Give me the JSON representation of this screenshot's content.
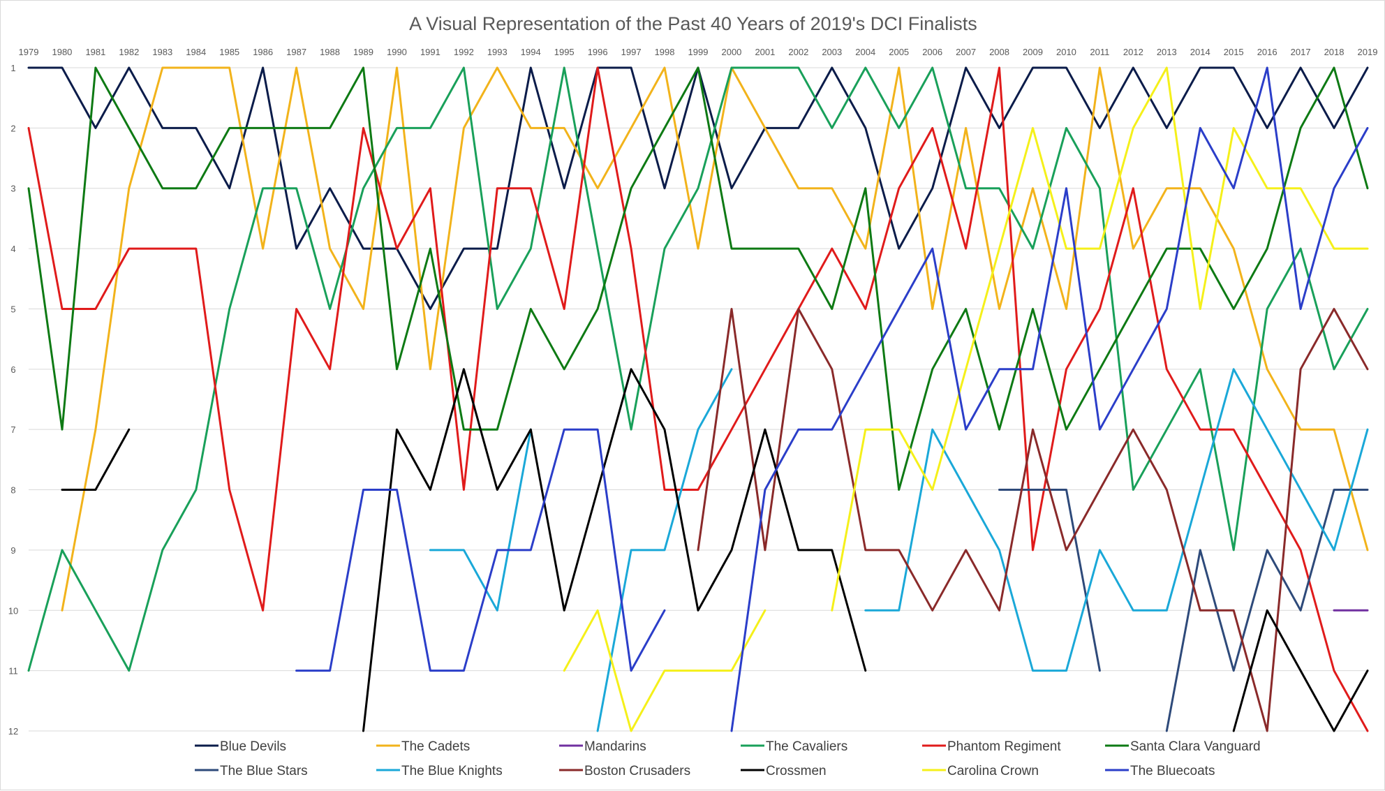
{
  "chart_data": {
    "type": "line",
    "title": "A Visual Representation of the Past 40 Years of 2019's DCI Finalists",
    "xlabel": "",
    "ylabel": "",
    "ylim": [
      12,
      1
    ],
    "y_ticks": [
      1,
      2,
      3,
      4,
      5,
      6,
      7,
      8,
      9,
      10,
      11,
      12
    ],
    "grid": true,
    "legend_position": "bottom",
    "x": [
      1979,
      1980,
      1981,
      1982,
      1983,
      1984,
      1985,
      1986,
      1987,
      1988,
      1989,
      1990,
      1991,
      1992,
      1993,
      1994,
      1995,
      1996,
      1997,
      1998,
      1999,
      2000,
      2001,
      2002,
      2003,
      2004,
      2005,
      2006,
      2007,
      2008,
      2009,
      2010,
      2011,
      2012,
      2013,
      2014,
      2015,
      2016,
      2017,
      2018,
      2019
    ],
    "series": [
      {
        "name": "Blue Devils",
        "color": "#0b1c4a",
        "values": [
          1,
          1,
          2,
          1,
          2,
          2,
          3,
          1,
          4,
          3,
          4,
          4,
          5,
          4,
          4,
          1,
          3,
          1,
          1,
          3,
          1,
          3,
          2,
          2,
          1,
          2,
          4,
          3,
          1,
          2,
          1,
          1,
          2,
          1,
          2,
          1,
          1,
          2,
          1,
          2,
          1
        ]
      },
      {
        "name": "The Cadets",
        "color": "#f2b31b",
        "values": [
          null,
          10,
          7,
          3,
          1,
          1,
          1,
          4,
          1,
          4,
          5,
          1,
          6,
          2,
          1,
          2,
          2,
          3,
          2,
          1,
          4,
          1,
          2,
          3,
          3,
          4,
          1,
          5,
          2,
          5,
          3,
          5,
          1,
          4,
          3,
          3,
          4,
          6,
          7,
          7,
          9
        ]
      },
      {
        "name": "Mandarins",
        "color": "#7030a0",
        "values": [
          null,
          null,
          null,
          null,
          null,
          null,
          null,
          null,
          null,
          null,
          null,
          null,
          null,
          null,
          null,
          null,
          null,
          null,
          null,
          null,
          null,
          null,
          null,
          null,
          null,
          null,
          null,
          null,
          null,
          null,
          null,
          null,
          null,
          null,
          null,
          null,
          null,
          null,
          null,
          10,
          10
        ]
      },
      {
        "name": "The Cavaliers",
        "color": "#19a05a",
        "values": [
          11,
          9,
          10,
          11,
          9,
          8,
          5,
          3,
          3,
          5,
          3,
          2,
          2,
          1,
          5,
          4,
          1,
          4,
          7,
          4,
          3,
          1,
          1,
          1,
          2,
          1,
          2,
          1,
          3,
          3,
          4,
          2,
          3,
          8,
          7,
          6,
          9,
          5,
          4,
          6,
          5
        ]
      },
      {
        "name": "Phantom Regiment",
        "color": "#e01b1b",
        "values": [
          2,
          5,
          5,
          4,
          4,
          4,
          8,
          10,
          5,
          6,
          2,
          4,
          3,
          8,
          3,
          3,
          5,
          1,
          4,
          8,
          8,
          7,
          6,
          5,
          4,
          5,
          3,
          2,
          4,
          1,
          9,
          6,
          5,
          3,
          6,
          7,
          7,
          8,
          9,
          11,
          12
        ]
      },
      {
        "name": "Santa Clara Vanguard",
        "color": "#0e7a14",
        "values": [
          3,
          7,
          1,
          2,
          3,
          3,
          2,
          2,
          2,
          2,
          1,
          6,
          4,
          7,
          7,
          5,
          6,
          5,
          3,
          2,
          1,
          4,
          4,
          4,
          5,
          3,
          8,
          6,
          5,
          7,
          5,
          7,
          6,
          5,
          4,
          4,
          5,
          4,
          2,
          1,
          3
        ]
      },
      {
        "name": "The Blue Stars",
        "color": "#2e4a7a",
        "values": [
          null,
          null,
          null,
          null,
          null,
          null,
          null,
          null,
          null,
          null,
          null,
          null,
          null,
          null,
          null,
          null,
          null,
          null,
          null,
          null,
          null,
          null,
          null,
          null,
          null,
          null,
          null,
          null,
          null,
          8,
          8,
          8,
          11,
          null,
          12,
          9,
          11,
          9,
          10,
          8,
          8
        ]
      },
      {
        "name": "The Blue Knights",
        "color": "#1aa8d8",
        "values": [
          null,
          null,
          null,
          null,
          null,
          null,
          null,
          null,
          null,
          null,
          null,
          null,
          9,
          9,
          10,
          7,
          null,
          12,
          9,
          9,
          7,
          6,
          null,
          null,
          null,
          10,
          10,
          7,
          8,
          9,
          11,
          11,
          9,
          10,
          10,
          8,
          6,
          7,
          8,
          9,
          7
        ]
      },
      {
        "name": "Boston Crusaders",
        "color": "#8a2a2a",
        "values": [
          null,
          null,
          null,
          null,
          null,
          null,
          null,
          null,
          null,
          null,
          null,
          null,
          null,
          null,
          null,
          null,
          null,
          null,
          null,
          null,
          9,
          5,
          9,
          5,
          6,
          9,
          9,
          10,
          9,
          10,
          7,
          9,
          8,
          7,
          8,
          10,
          10,
          12,
          6,
          5,
          6
        ]
      },
      {
        "name": "Crossmen",
        "color": "#000000",
        "values": [
          null,
          8,
          8,
          7,
          null,
          null,
          null,
          null,
          null,
          null,
          12,
          7,
          8,
          6,
          8,
          7,
          10,
          8,
          6,
          7,
          10,
          9,
          7,
          9,
          9,
          11,
          null,
          null,
          null,
          null,
          null,
          null,
          null,
          null,
          null,
          null,
          12,
          10,
          11,
          12,
          11
        ]
      },
      {
        "name": "Carolina Crown",
        "color": "#f5f01a",
        "values": [
          null,
          null,
          null,
          null,
          null,
          null,
          null,
          null,
          null,
          null,
          null,
          null,
          null,
          null,
          null,
          null,
          11,
          10,
          12,
          11,
          11,
          11,
          10,
          null,
          10,
          7,
          7,
          8,
          6,
          4,
          2,
          4,
          4,
          2,
          1,
          5,
          2,
          3,
          3,
          4,
          4
        ]
      },
      {
        "name": "The Bluecoats",
        "color": "#2b3ec9",
        "values": [
          null,
          null,
          null,
          null,
          null,
          null,
          null,
          null,
          11,
          11,
          8,
          8,
          11,
          11,
          9,
          9,
          7,
          7,
          11,
          10,
          null,
          12,
          8,
          7,
          7,
          6,
          5,
          4,
          7,
          6,
          6,
          3,
          7,
          6,
          5,
          2,
          3,
          1,
          5,
          3,
          2
        ]
      }
    ]
  }
}
